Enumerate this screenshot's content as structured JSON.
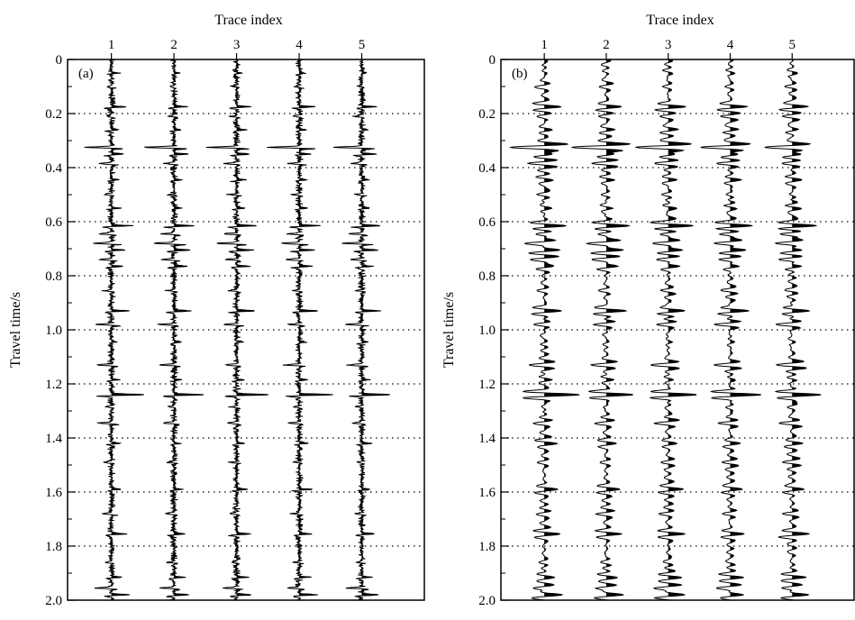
{
  "chart_data": [
    {
      "type": "wiggle-trace",
      "panel_label": "(a)",
      "xlabel": "Trace index",
      "ylabel": "Travel time/s",
      "trace_labels": [
        "1",
        "2",
        "3",
        "4",
        "5"
      ],
      "xlim": [
        0.3,
        6.0
      ],
      "ylim": [
        0.0,
        2.0
      ],
      "y_ticks": [
        "0",
        "0.2",
        "0.4",
        "0.6",
        "0.8",
        "1.0",
        "1.2",
        "1.4",
        "1.6",
        "1.8",
        "2.0"
      ],
      "grid": "dotted-horizontal",
      "fill": "positive",
      "wavelet": "sharp",
      "noise_level": 0.09,
      "events": [
        {
          "t": 0.05,
          "a": 0.2
        },
        {
          "t": 0.1,
          "a": -0.16
        },
        {
          "t": 0.175,
          "a": 0.55
        },
        {
          "t": 0.21,
          "a": -0.22
        },
        {
          "t": 0.26,
          "a": 0.28
        },
        {
          "t": 0.325,
          "a": -1.15
        },
        {
          "t": 0.35,
          "a": 0.5
        },
        {
          "t": 0.385,
          "a": -0.42
        },
        {
          "t": 0.445,
          "a": 0.28
        },
        {
          "t": 0.5,
          "a": -0.25
        },
        {
          "t": 0.55,
          "a": 0.3
        },
        {
          "t": 0.615,
          "a": 0.72
        },
        {
          "t": 0.645,
          "a": -0.45
        },
        {
          "t": 0.68,
          "a": -0.7
        },
        {
          "t": 0.705,
          "a": 0.6
        },
        {
          "t": 0.74,
          "a": -0.45
        },
        {
          "t": 0.765,
          "a": 0.48
        },
        {
          "t": 0.855,
          "a": -0.22
        },
        {
          "t": 0.93,
          "a": 0.68
        },
        {
          "t": 0.98,
          "a": -0.55
        },
        {
          "t": 1.045,
          "a": 0.22
        },
        {
          "t": 1.13,
          "a": -0.52
        },
        {
          "t": 1.185,
          "a": 0.3
        },
        {
          "t": 1.24,
          "a": 1.2
        },
        {
          "t": 1.285,
          "a": -0.2
        },
        {
          "t": 1.345,
          "a": -0.42
        },
        {
          "t": 1.42,
          "a": 0.32
        },
        {
          "t": 1.49,
          "a": -0.2
        },
        {
          "t": 1.59,
          "a": 0.38
        },
        {
          "t": 1.68,
          "a": -0.3
        },
        {
          "t": 1.755,
          "a": 0.52
        },
        {
          "t": 1.86,
          "a": -0.2
        },
        {
          "t": 1.915,
          "a": 0.45
        },
        {
          "t": 1.955,
          "a": -0.55
        },
        {
          "t": 1.98,
          "a": 0.6
        }
      ]
    },
    {
      "type": "wiggle-trace",
      "panel_label": "(b)",
      "xlabel": "Trace index",
      "ylabel": "Travel time/s",
      "trace_labels": [
        "1",
        "2",
        "3",
        "4",
        "5"
      ],
      "xlim": [
        0.3,
        6.0
      ],
      "ylim": [
        0.0,
        2.0
      ],
      "y_ticks": [
        "0",
        "0.2",
        "0.4",
        "0.6",
        "0.8",
        "1.0",
        "1.2",
        "1.4",
        "1.6",
        "1.8",
        "2.0"
      ],
      "grid": "dotted-horizontal",
      "fill": "positive",
      "wavelet": "smooth",
      "noise_level": 0.02,
      "events": [
        {
          "t": 0.05,
          "a": 0.2
        },
        {
          "t": 0.1,
          "a": -0.16
        },
        {
          "t": 0.175,
          "a": 0.55
        },
        {
          "t": 0.21,
          "a": -0.22
        },
        {
          "t": 0.26,
          "a": 0.28
        },
        {
          "t": 0.325,
          "a": -1.15
        },
        {
          "t": 0.35,
          "a": 0.5
        },
        {
          "t": 0.385,
          "a": -0.42
        },
        {
          "t": 0.445,
          "a": 0.28
        },
        {
          "t": 0.5,
          "a": -0.25
        },
        {
          "t": 0.55,
          "a": 0.3
        },
        {
          "t": 0.615,
          "a": 0.72
        },
        {
          "t": 0.645,
          "a": -0.45
        },
        {
          "t": 0.68,
          "a": -0.7
        },
        {
          "t": 0.705,
          "a": 0.6
        },
        {
          "t": 0.74,
          "a": -0.45
        },
        {
          "t": 0.765,
          "a": 0.48
        },
        {
          "t": 0.855,
          "a": -0.22
        },
        {
          "t": 0.93,
          "a": 0.68
        },
        {
          "t": 0.98,
          "a": -0.55
        },
        {
          "t": 1.045,
          "a": 0.22
        },
        {
          "t": 1.13,
          "a": -0.52
        },
        {
          "t": 1.185,
          "a": 0.3
        },
        {
          "t": 1.24,
          "a": 1.2
        },
        {
          "t": 1.285,
          "a": -0.2
        },
        {
          "t": 1.345,
          "a": -0.42
        },
        {
          "t": 1.42,
          "a": 0.32
        },
        {
          "t": 1.49,
          "a": -0.2
        },
        {
          "t": 1.59,
          "a": 0.38
        },
        {
          "t": 1.68,
          "a": -0.3
        },
        {
          "t": 1.755,
          "a": 0.52
        },
        {
          "t": 1.86,
          "a": -0.2
        },
        {
          "t": 1.915,
          "a": 0.45
        },
        {
          "t": 1.955,
          "a": -0.55
        },
        {
          "t": 1.98,
          "a": 0.6
        }
      ]
    }
  ]
}
